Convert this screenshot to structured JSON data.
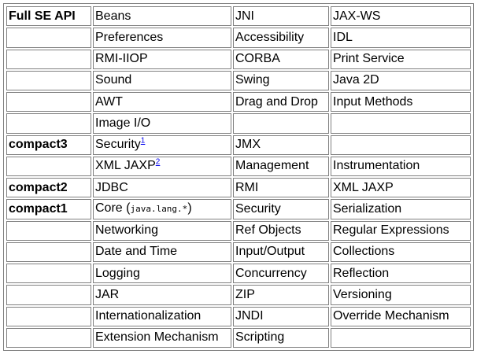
{
  "rows": [
    {
      "profile": "Full SE API",
      "c2": "Beans",
      "c3": "JNI",
      "c4": "JAX-WS"
    },
    {
      "profile": "",
      "c2": "Preferences",
      "c3": "Accessibility",
      "c4": "IDL"
    },
    {
      "profile": "",
      "c2": "RMI-IIOP",
      "c3": "CORBA",
      "c4": "Print Service"
    },
    {
      "profile": "",
      "c2": "Sound",
      "c3": "Swing",
      "c4": "Java 2D"
    },
    {
      "profile": "",
      "c2": "AWT",
      "c3": "Drag and Drop",
      "c4": "Input Methods"
    },
    {
      "profile": "",
      "c2": "Image I/O",
      "c3": "",
      "c4": ""
    },
    {
      "profile": "compact3",
      "c2": "Security",
      "c2_sup": "1",
      "c3": "JMX",
      "c4": ""
    },
    {
      "profile": "",
      "c2": "XML JAXP",
      "c2_sup": "2",
      "c3": "Management",
      "c4": "Instrumentation"
    },
    {
      "profile": "compact2",
      "c2": "JDBC",
      "c3": "RMI",
      "c4": "XML JAXP"
    },
    {
      "profile": "compact1",
      "c2": "Core (",
      "c2_code": "java.lang.*",
      "c2_suffix": ")",
      "c3": "Security",
      "c4": "Serialization"
    },
    {
      "profile": "",
      "c2": "Networking",
      "c3": "Ref Objects",
      "c4": "Regular Expressions"
    },
    {
      "profile": "",
      "c2": "Date and Time",
      "c3": "Input/Output",
      "c4": "Collections"
    },
    {
      "profile": "",
      "c2": "Logging",
      "c3": "Concurrency",
      "c4": "Reflection"
    },
    {
      "profile": "",
      "c2": "JAR",
      "c3": "ZIP",
      "c4": "Versioning"
    },
    {
      "profile": "",
      "c2": "Internationalization",
      "c3": "JNDI",
      "c4": "Override Mechanism"
    },
    {
      "profile": "",
      "c2": "Extension Mechanism",
      "c3": "Scripting",
      "c4": ""
    }
  ]
}
